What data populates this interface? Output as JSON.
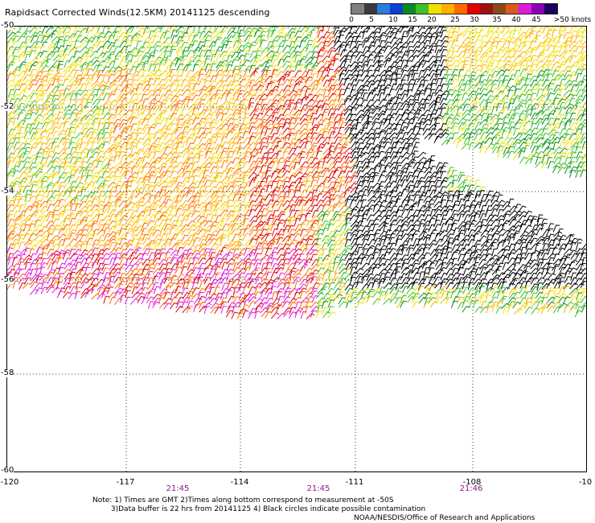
{
  "title": "Rapidsact Corrected Winds(12.5KM) 20141125 descending",
  "colorbar": {
    "colors": [
      "#808080",
      "#3a3a3a",
      "#2c7ce0",
      "#0b3fd6",
      "#0a8a1e",
      "#3fbf2a",
      "#f0e000",
      "#ffb000",
      "#ff6a00",
      "#e00000",
      "#a01010",
      "#8a4a1a",
      "#d85a20",
      "#e018e0",
      "#8a00b8",
      "#1a0060"
    ],
    "labels": [
      "0",
      "5",
      "10",
      "15",
      "20",
      "25",
      "30",
      "35",
      "40",
      "45",
      ">50 knots"
    ]
  },
  "axes": {
    "lat_labels": [
      "-50",
      "-52",
      "-54",
      "-56",
      "-58",
      "-60"
    ],
    "lon_labels": [
      "-120",
      "-117",
      "-114",
      "-111",
      "-108",
      "-10"
    ],
    "time_labels": [
      "21:45",
      "21:45",
      "21:46"
    ]
  },
  "note": "Note: 1) Times are GMT 2)Times along bottom correspond to measurement at -50S\n        3)Data buffer is 22 hrs from 20141125 4) Black circles indicate possible contamination",
  "credit": "NOAA/NESDIS/Office of Research and Applications"
}
